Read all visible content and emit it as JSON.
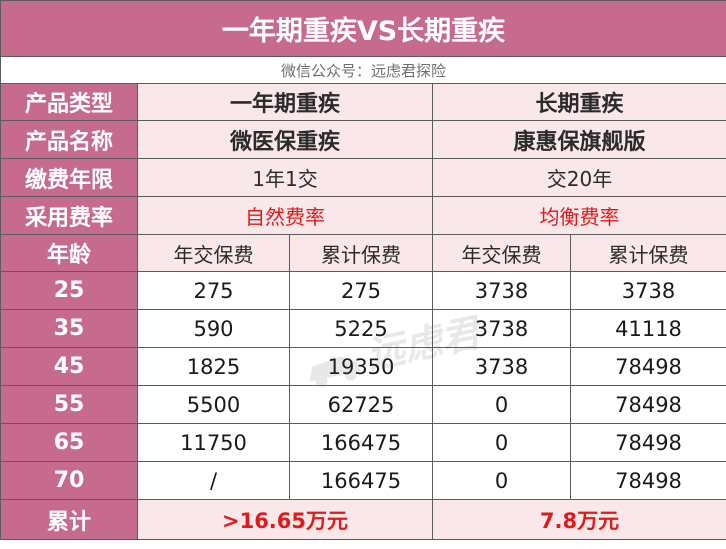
{
  "title": "一年期重疾VS长期重疾",
  "subtitle": "微信公众号：远虑君探险",
  "rows": {
    "product_type": {
      "label": "产品类型",
      "col1": "一年期重疾",
      "col2": "长期重疾"
    },
    "product_name": {
      "label": "产品名称",
      "col1": "微医保重疾",
      "col2": "康惠保旗舰版"
    },
    "payment_term": {
      "label": "缴费年限",
      "col1": "1年1交",
      "col2": "交20年"
    },
    "rate_type": {
      "label": "采用费率",
      "col1": "自然费率",
      "col2": "均衡费率"
    }
  },
  "age_header": {
    "label": "年龄",
    "columns": [
      "年交保费",
      "累计保费",
      "年交保费",
      "累计保费"
    ]
  },
  "ages": [
    {
      "age": "25",
      "v1": "275",
      "v2": "275",
      "v3": "3738",
      "v4": "3738"
    },
    {
      "age": "35",
      "v1": "590",
      "v2": "5225",
      "v3": "3738",
      "v4": "41118"
    },
    {
      "age": "45",
      "v1": "1825",
      "v2": "19350",
      "v3": "3738",
      "v4": "78498"
    },
    {
      "age": "55",
      "v1": "5500",
      "v2": "62725",
      "v3": "0",
      "v4": "78498"
    },
    {
      "age": "65",
      "v1": "11750",
      "v2": "166475",
      "v3": "0",
      "v4": "78498"
    },
    {
      "age": "70",
      "v1": "/",
      "v2": "166475",
      "v3": "0",
      "v4": "78498"
    }
  ],
  "total": {
    "label": "累计",
    "col1": ">16.65万元",
    "col2": "7.8万元"
  },
  "watermark": "远虑君",
  "colors": {
    "accent": "#c66b8e",
    "light": "#f9e7ea",
    "red": "#e01b1b"
  }
}
